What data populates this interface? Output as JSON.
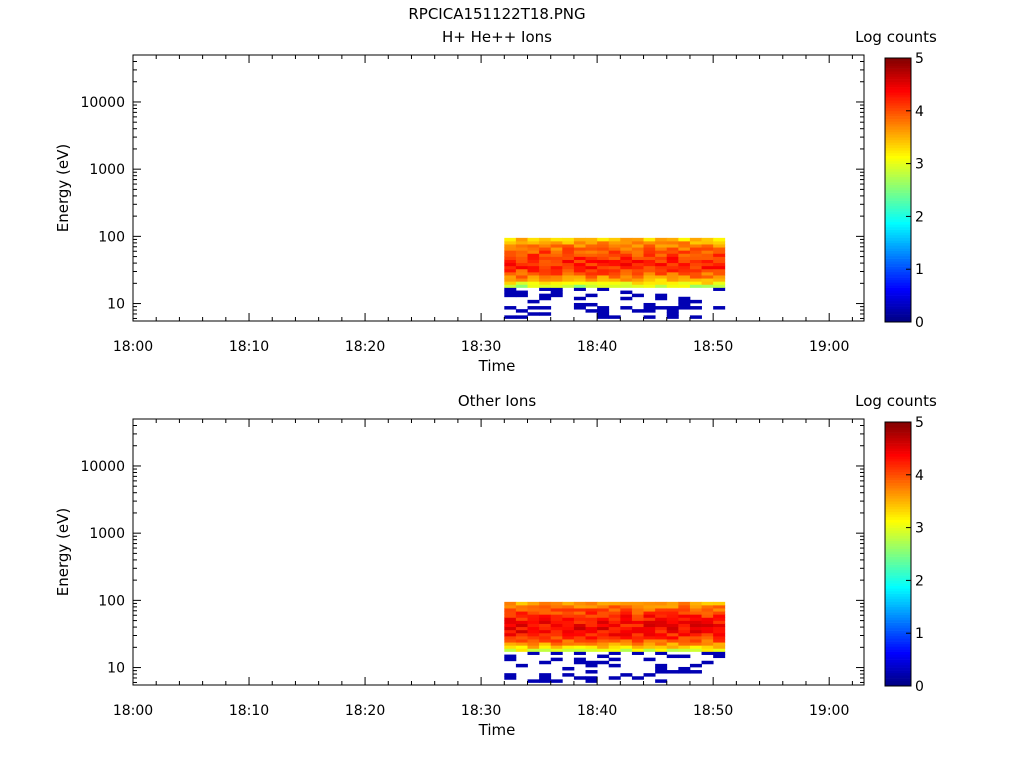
{
  "title": "RPCICA151122T18.PNG",
  "chart_data": [
    {
      "type": "heatmap",
      "title": "H+ He++ Ions",
      "xlabel": "Time",
      "ylabel": "Energy (eV)",
      "x_ticks": [
        "18:00",
        "18:10",
        "18:20",
        "18:30",
        "18:40",
        "18:50",
        "19:00"
      ],
      "x_range_minutes": [
        0,
        63
      ],
      "y_scale": "log",
      "y_range": [
        5.5,
        50000
      ],
      "y_ticks": [
        10,
        100,
        1000,
        10000
      ],
      "y_tick_labels": [
        "10",
        "100",
        "1000",
        "10000"
      ],
      "colorbar": {
        "label": "Log counts",
        "range": [
          0,
          5
        ],
        "ticks": [
          "0",
          "1",
          "2",
          "3",
          "4",
          "5"
        ],
        "colormap": "jet"
      },
      "data_time_range_minutes": [
        32,
        51
      ],
      "data_energy_range": [
        6,
        95
      ],
      "peak_energy": 40,
      "peak_log_counts": 4.3
    },
    {
      "type": "heatmap",
      "title": "Other Ions",
      "xlabel": "Time",
      "ylabel": "Energy (eV)",
      "x_ticks": [
        "18:00",
        "18:10",
        "18:20",
        "18:30",
        "18:40",
        "18:50",
        "19:00"
      ],
      "x_range_minutes": [
        0,
        63
      ],
      "y_scale": "log",
      "y_range": [
        5.5,
        50000
      ],
      "y_ticks": [
        10,
        100,
        1000,
        10000
      ],
      "y_tick_labels": [
        "10",
        "100",
        "1000",
        "10000"
      ],
      "colorbar": {
        "label": "Log counts",
        "range": [
          0,
          5
        ],
        "ticks": [
          "0",
          "1",
          "2",
          "3",
          "4",
          "5"
        ],
        "colormap": "jet"
      },
      "data_time_range_minutes": [
        32,
        51
      ],
      "data_energy_range": [
        6,
        95
      ],
      "peak_energy": 40,
      "peak_log_counts": 4.5
    }
  ]
}
